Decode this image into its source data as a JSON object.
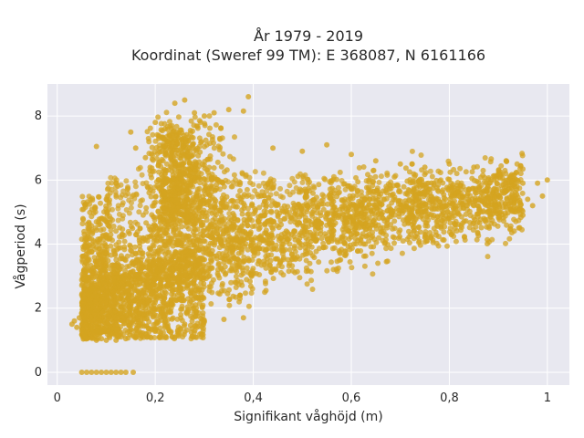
{
  "chart_data": {
    "type": "scatter",
    "title_line1": "År 1979 - 2019",
    "title_line2": "Koordinat (Sweref 99 TM): E 368087, N 6161166",
    "xlabel": "Signifikant våghöjd (m)",
    "ylabel": "Vågperiod (s)",
    "xlim": [
      -0.02,
      1.045
    ],
    "ylim": [
      -0.4,
      9.0
    ],
    "xticks": [
      0,
      0.2,
      0.4,
      0.6,
      0.8,
      1.0
    ],
    "xtick_labels": [
      "0",
      "0,2",
      "0,4",
      "0,6",
      "0,8",
      "1"
    ],
    "yticks": [
      0,
      2,
      4,
      6,
      8
    ],
    "ytick_labels": [
      "0",
      "2",
      "4",
      "6",
      "8"
    ],
    "grid": true,
    "background_color": "#e8e8f0",
    "grid_color": "#ffffff",
    "marker_color": "#d4a420",
    "series": [
      {
        "values_description_free": true,
        "points": [
          [
            0.05,
            0
          ],
          [
            0.06,
            0
          ],
          [
            0.07,
            0
          ],
          [
            0.08,
            0
          ],
          [
            0.09,
            0
          ],
          [
            0.1,
            0
          ],
          [
            0.11,
            0
          ],
          [
            0.12,
            0
          ],
          [
            0.13,
            0
          ],
          [
            0.14,
            0
          ],
          [
            0.155,
            0
          ],
          [
            0.03,
            1.5
          ],
          [
            0.035,
            1.6
          ],
          [
            0.04,
            1.4
          ],
          [
            0.045,
            1.7
          ],
          [
            0.05,
            1.3
          ],
          [
            0.06,
            1.2
          ],
          [
            0.07,
            1.1
          ],
          [
            0.08,
            1.0
          ],
          [
            0.09,
            1.05
          ],
          [
            0.1,
            1.0
          ],
          [
            0.12,
            1.0
          ],
          [
            0.14,
            1.05
          ],
          [
            0.16,
            1.1
          ],
          [
            0.18,
            1.2
          ],
          [
            0.2,
            1.3
          ],
          [
            0.22,
            1.4
          ],
          [
            0.26,
            1.5
          ],
          [
            0.3,
            1.6
          ],
          [
            0.34,
            1.65
          ],
          [
            0.38,
            1.7
          ],
          [
            0.08,
            7.05
          ],
          [
            0.1,
            5.4
          ],
          [
            0.12,
            5.9
          ],
          [
            0.15,
            7.5
          ],
          [
            0.16,
            7.0
          ],
          [
            0.18,
            6.7
          ],
          [
            0.2,
            7.8
          ],
          [
            0.22,
            7.6
          ],
          [
            0.24,
            8.4
          ],
          [
            0.26,
            8.5
          ],
          [
            0.28,
            8.1
          ],
          [
            0.3,
            8.0
          ],
          [
            0.32,
            8.1
          ],
          [
            0.35,
            8.2
          ],
          [
            0.38,
            8.15
          ],
          [
            0.39,
            8.6
          ],
          [
            0.44,
            7.0
          ],
          [
            0.5,
            6.9
          ],
          [
            0.55,
            7.1
          ],
          [
            0.6,
            6.8
          ],
          [
            0.65,
            6.6
          ],
          [
            0.7,
            6.5
          ],
          [
            0.75,
            6.4
          ],
          [
            0.8,
            6.5
          ],
          [
            0.85,
            6.4
          ],
          [
            0.9,
            6.2
          ],
          [
            0.95,
            5.9
          ],
          [
            0.98,
            5.9
          ],
          [
            1.0,
            6.0
          ],
          [
            0.99,
            5.5
          ],
          [
            0.97,
            5.2
          ],
          [
            0.96,
            5.4
          ],
          [
            0.95,
            4.9
          ]
        ]
      }
    ]
  }
}
